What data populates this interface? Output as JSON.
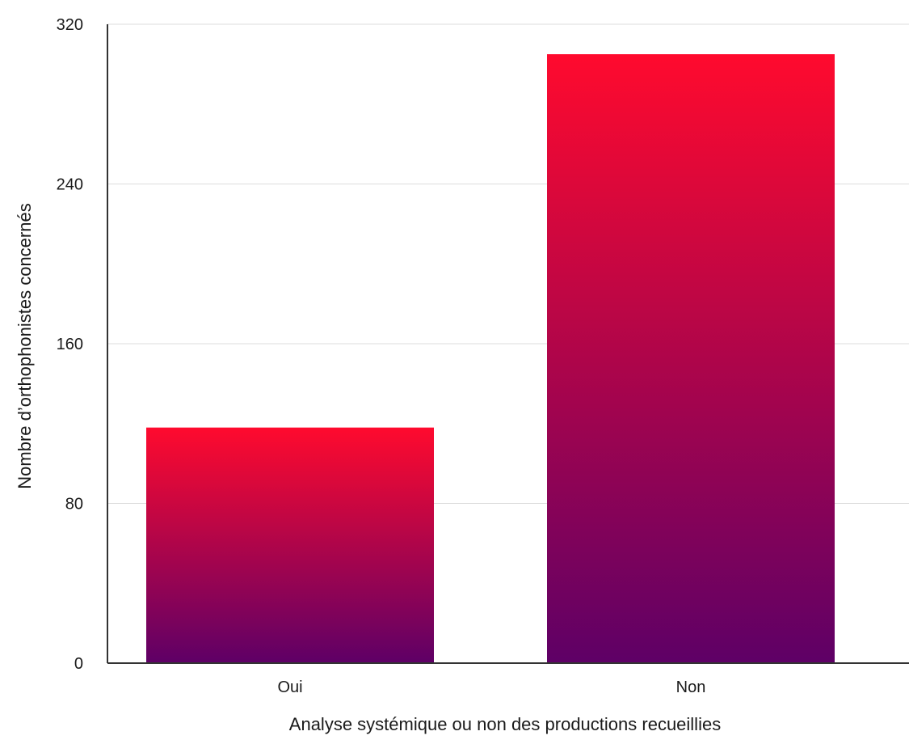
{
  "chart_data": {
    "type": "bar",
    "categories": [
      "Oui",
      "Non"
    ],
    "values": [
      118,
      305
    ],
    "title": "",
    "xlabel": "Analyse systémique ou non des productions recueillies",
    "ylabel": "Nombre d’orthophonistes concernés",
    "ylim": [
      0,
      320
    ],
    "yticks": [
      0,
      80,
      160,
      240,
      320
    ],
    "grid": true,
    "legend": "none",
    "colors": {
      "bar_top": "#ff0a2e",
      "bar_bottom": "#5e0066",
      "grid": "#dcdcdc",
      "axis": "#333333"
    }
  }
}
